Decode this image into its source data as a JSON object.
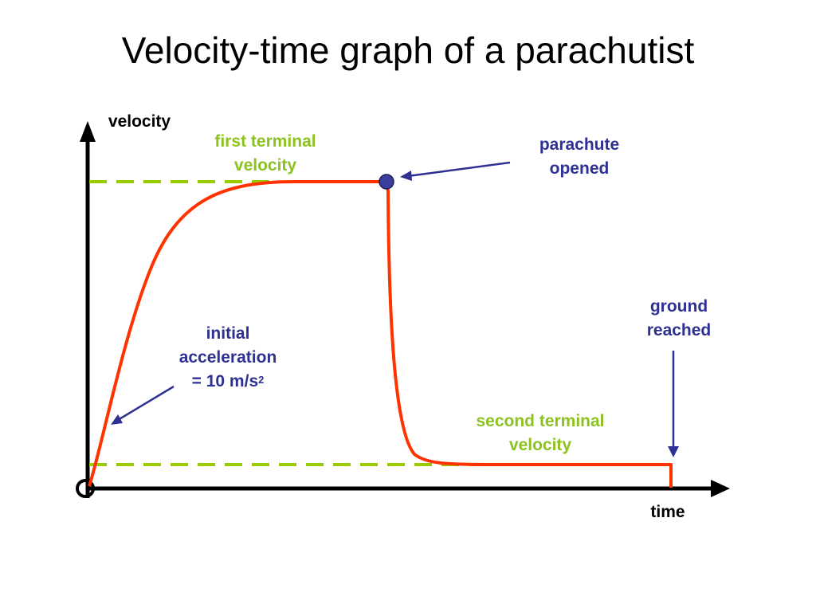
{
  "title": "Velocity-time graph of a parachutist",
  "axes": {
    "y_label": "velocity",
    "x_label": "time"
  },
  "annotations": {
    "first_terminal": {
      "line1": "first terminal",
      "line2": "velocity"
    },
    "parachute": {
      "line1": "parachute",
      "line2": "opened"
    },
    "ground": {
      "line1": "ground",
      "line2": "reached"
    },
    "initial": {
      "line1": "initial",
      "line2": "acceleration",
      "line3_prefix": "= 10 m/s",
      "line3_sup": "2"
    },
    "second_terminal": {
      "line1": "second terminal",
      "line2": "velocity"
    }
  },
  "colors": {
    "curve": "#ff3300",
    "dashed": "#99cc00",
    "annotation_green": "#8cc21f",
    "annotation_blue": "#2e3192",
    "marker": "#3a3f9e",
    "axis": "#000000"
  }
}
